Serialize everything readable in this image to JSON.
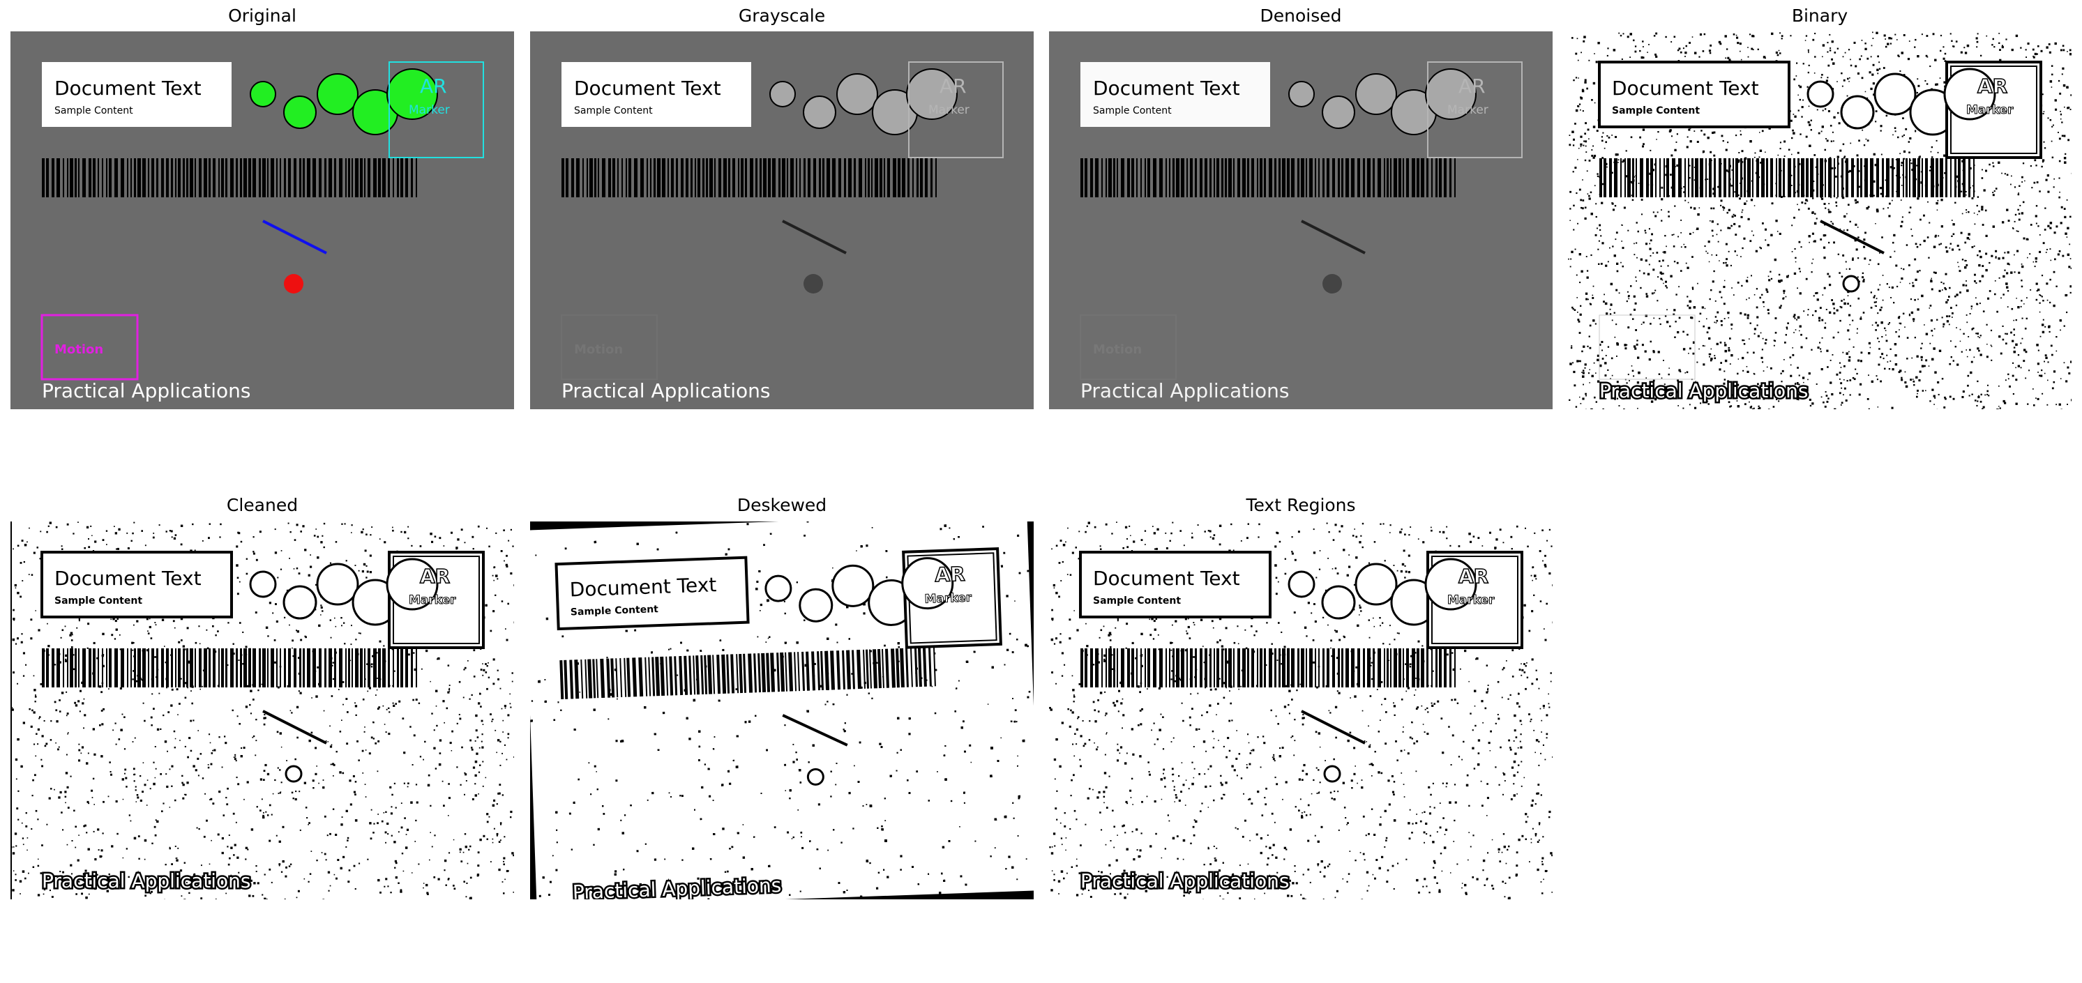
{
  "panels": [
    {
      "title": "Original"
    },
    {
      "title": "Grayscale"
    },
    {
      "title": "Denoised"
    },
    {
      "title": "Binary"
    },
    {
      "title": "Cleaned"
    },
    {
      "title": "Deskewed"
    },
    {
      "title": "Text Regions"
    }
  ],
  "scene": {
    "doc_title": "Document Text",
    "doc_subtitle": "Sample Content",
    "marker_line1": "AR",
    "marker_line2": "Marker",
    "motion_label": "Motion",
    "footer_text": "Practical Applications"
  },
  "colors": {
    "gray_bg": "#6b6b6b",
    "green_circles": "#22ee22",
    "cyan_box": "#22e0e0",
    "blue_line": "#1010ee",
    "red_dot": "#ee1010",
    "magenta_box": "#e020e0"
  }
}
